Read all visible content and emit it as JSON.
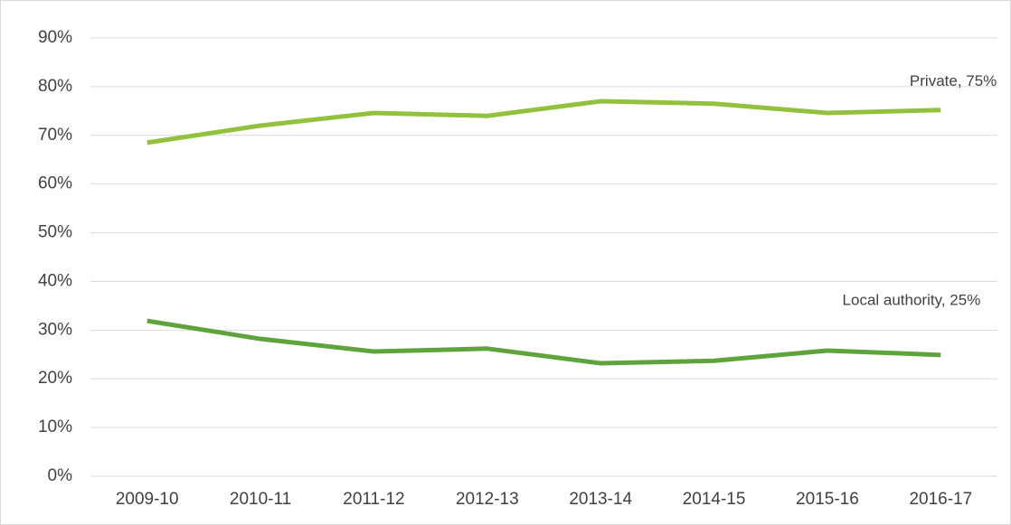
{
  "chart_data": {
    "type": "line",
    "categories": [
      "2009-10",
      "2010-11",
      "2011-12",
      "2012-13",
      "2013-14",
      "2014-15",
      "2015-16",
      "2016-17"
    ],
    "series": [
      {
        "label": "Private, 75%",
        "color": "#92c13e",
        "values": [
          68.5,
          72,
          74.6,
          74,
          77,
          76.5,
          74.6,
          75.2
        ]
      },
      {
        "label": "Local authority, 25%",
        "color": "#5fa33c",
        "values": [
          31.9,
          28.2,
          25.6,
          26.2,
          23.2,
          23.7,
          25.8,
          24.9
        ]
      }
    ],
    "ylim": [
      0,
      90
    ],
    "yticks": [
      {
        "value": 0,
        "label": "0%"
      },
      {
        "value": 10,
        "label": "10%"
      },
      {
        "value": 20,
        "label": "20%"
      },
      {
        "value": 30,
        "label": "30%"
      },
      {
        "value": 40,
        "label": "40%"
      },
      {
        "value": 50,
        "label": "50%"
      },
      {
        "value": 60,
        "label": "60%"
      },
      {
        "value": 70,
        "label": "70%"
      },
      {
        "value": 80,
        "label": "80%"
      },
      {
        "value": 90,
        "label": "90%"
      }
    ],
    "grid": true
  }
}
